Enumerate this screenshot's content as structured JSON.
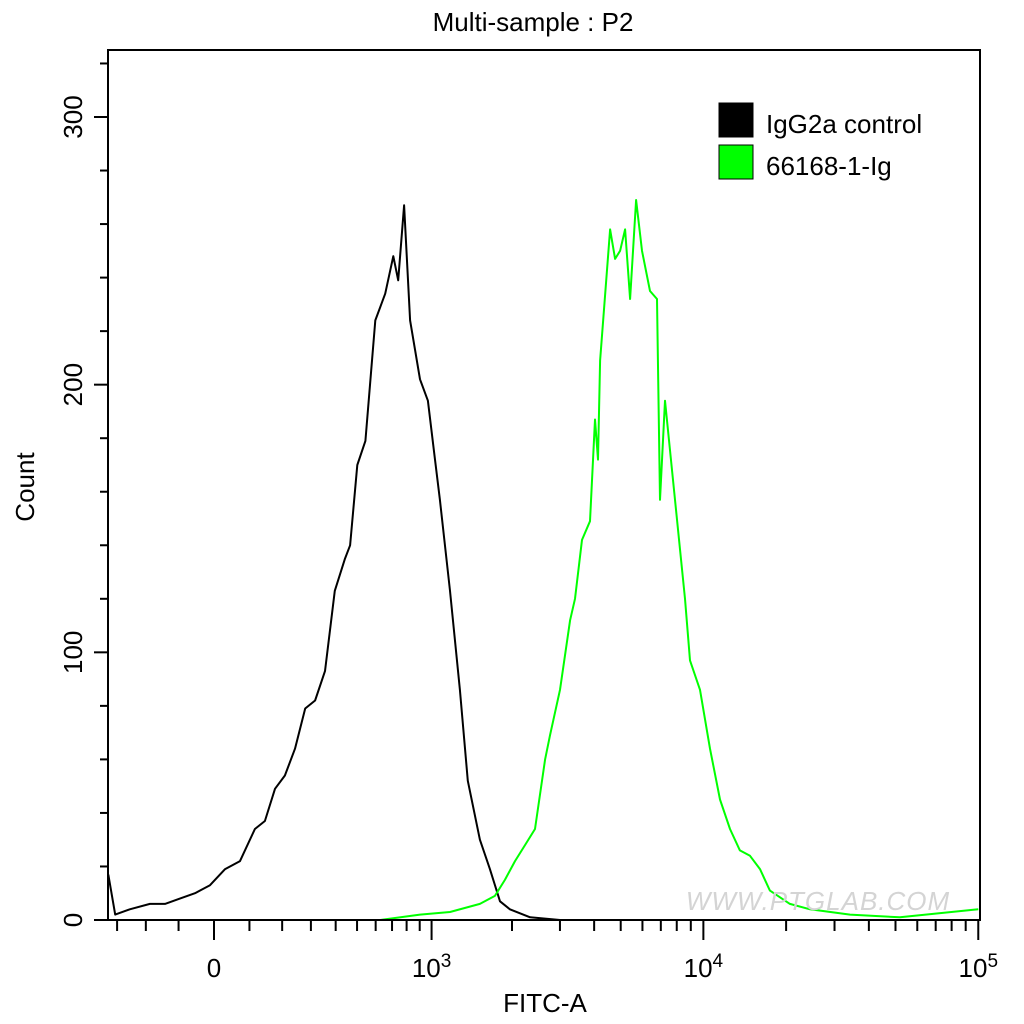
{
  "chart_data": {
    "type": "line",
    "title": "Multi-sample : P2",
    "xlabel": "FITC-A",
    "ylabel": "Count",
    "x_scale": "logicle",
    "xlim": [
      -334,
      100000
    ],
    "ylim": [
      0,
      325
    ],
    "x_ticks": [
      {
        "value": 0,
        "label": "0"
      },
      {
        "value": 1000,
        "base": "10",
        "exp": "3"
      },
      {
        "value": 10000,
        "base": "10",
        "exp": "4"
      },
      {
        "value": 100000,
        "base": "10",
        "exp": "5"
      }
    ],
    "y_ticks": [
      0,
      100,
      200,
      300
    ],
    "grid": false,
    "legend_position": "top-right",
    "watermark": "WWW.PTGLAB.COM",
    "series": [
      {
        "name": "IgG2a control",
        "color": "#000000",
        "points": [
          [
            -334,
            17
          ],
          [
            -307,
            2
          ],
          [
            -254,
            4
          ],
          [
            -187,
            6
          ],
          [
            -140,
            6
          ],
          [
            -96,
            8
          ],
          [
            -53,
            10
          ],
          [
            -11,
            13
          ],
          [
            31,
            19
          ],
          [
            73,
            22
          ],
          [
            116,
            34
          ],
          [
            146,
            37
          ],
          [
            177,
            49
          ],
          [
            209,
            54
          ],
          [
            243,
            64
          ],
          [
            279,
            79
          ],
          [
            316,
            82
          ],
          [
            355,
            93
          ],
          [
            396,
            123
          ],
          [
            442,
            135
          ],
          [
            466,
            140
          ],
          [
            501,
            170
          ],
          [
            543,
            179
          ],
          [
            598,
            224
          ],
          [
            657,
            234
          ],
          [
            708,
            248
          ],
          [
            741,
            239
          ],
          [
            782,
            267
          ],
          [
            826,
            224
          ],
          [
            902,
            202
          ],
          [
            968,
            194
          ],
          [
            1031,
            172
          ],
          [
            1076,
            157
          ],
          [
            1175,
            123
          ],
          [
            1281,
            86
          ],
          [
            1371,
            52
          ],
          [
            1521,
            30
          ],
          [
            1657,
            19
          ],
          [
            1806,
            7
          ],
          [
            1965,
            4
          ],
          [
            2331,
            1
          ],
          [
            3001,
            0
          ],
          [
            4206,
            0
          ]
        ]
      },
      {
        "name": "66168-1-Ig",
        "color": "#00ff00",
        "points": [
          [
            87,
            0
          ],
          [
            627,
            0
          ],
          [
            902,
            2
          ],
          [
            1175,
            3
          ],
          [
            1521,
            6
          ],
          [
            1730,
            9
          ],
          [
            1883,
            15
          ],
          [
            2052,
            22
          ],
          [
            2234,
            28
          ],
          [
            2430,
            34
          ],
          [
            2646,
            60
          ],
          [
            2759,
            69
          ],
          [
            3001,
            86
          ],
          [
            3267,
            112
          ],
          [
            3406,
            120
          ],
          [
            3612,
            142
          ],
          [
            3864,
            149
          ],
          [
            4030,
            187
          ],
          [
            4133,
            172
          ],
          [
            4206,
            209
          ],
          [
            4575,
            258
          ],
          [
            4771,
            247
          ],
          [
            4973,
            250
          ],
          [
            5186,
            258
          ],
          [
            5408,
            232
          ],
          [
            5687,
            269
          ],
          [
            5979,
            250
          ],
          [
            6394,
            235
          ],
          [
            6779,
            232
          ],
          [
            6949,
            157
          ],
          [
            7248,
            194
          ],
          [
            7882,
            157
          ],
          [
            8572,
            120
          ],
          [
            8941,
            97
          ],
          [
            9718,
            86
          ],
          [
            10568,
            64
          ],
          [
            11494,
            45
          ],
          [
            12500,
            34
          ],
          [
            13579,
            26
          ],
          [
            14774,
            24
          ],
          [
            16069,
            19
          ],
          [
            17463,
            11
          ],
          [
            20650,
            6
          ],
          [
            24435,
            4
          ],
          [
            34163,
            2
          ],
          [
            51892,
            1
          ],
          [
            100000,
            4
          ]
        ]
      }
    ]
  }
}
